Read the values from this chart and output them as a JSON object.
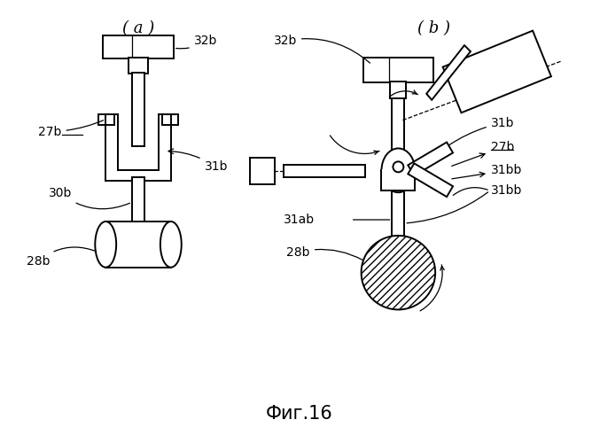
{
  "bg_color": "#ffffff",
  "line_color": "#000000",
  "label_a": "( a )",
  "label_b": "( b )",
  "fig_label": "Фиг.16"
}
